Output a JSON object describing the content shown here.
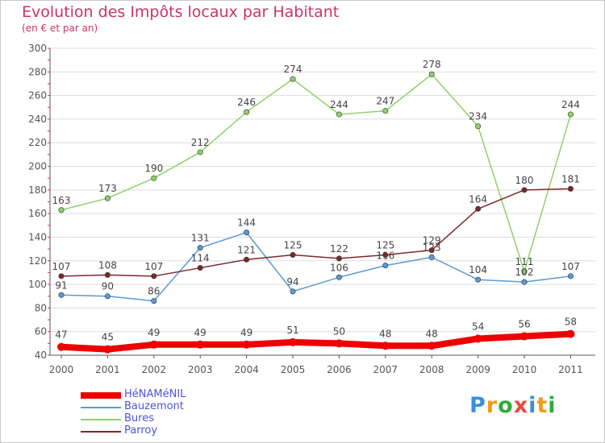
{
  "title": "Evolution des Impôts locaux par Habitant",
  "subtitle": "(en € et par an)",
  "logo": {
    "letters": [
      "P",
      "r",
      "o",
      "x",
      "i",
      "t",
      "i"
    ],
    "colors": [
      "#3a8fd8",
      "#f39c12",
      "#2eab3a",
      "#e74c3c",
      "#3a8fd8",
      "#f39c12",
      "#2eab3a"
    ]
  },
  "colors": {
    "title": "#cc3366",
    "legend_text": "#4a55d8",
    "axis": "#555555",
    "grid": "#dddddd"
  },
  "chart_data": {
    "type": "line",
    "title": "Evolution des Impôts locaux par Habitant",
    "subtitle": "(en € et par an)",
    "categories": [
      "2000",
      "2001",
      "2002",
      "2003",
      "2004",
      "2005",
      "2006",
      "2007",
      "2008",
      "2009",
      "2010",
      "2011"
    ],
    "ylim": [
      40,
      300
    ],
    "yticks": [
      40,
      60,
      80,
      100,
      120,
      140,
      160,
      180,
      200,
      220,
      240,
      260,
      280,
      300
    ],
    "grid": true,
    "legend_position": "bottom-left",
    "series": [
      {
        "name": "HéNAMéNIL",
        "color": "#ee0000",
        "values": [
          47,
          45,
          49,
          49,
          49,
          51,
          50,
          48,
          48,
          54,
          56,
          58
        ],
        "labels": [
          "47",
          "45",
          "49",
          "49",
          "49",
          "51",
          "50",
          "48",
          "48",
          "54",
          "56",
          "58"
        ]
      },
      {
        "name": "Bauzemont",
        "color": "#5b9bd5",
        "values": [
          91,
          90,
          86,
          131,
          144,
          94,
          106,
          116,
          123,
          104,
          102,
          107
        ],
        "labels": [
          "91",
          "90",
          "86",
          "131",
          "144",
          "94",
          "106",
          "116",
          "123",
          "104",
          "102",
          "107"
        ]
      },
      {
        "name": "Bures",
        "color": "#8fd16a",
        "values": [
          163,
          173,
          190,
          212,
          246,
          274,
          244,
          247,
          278,
          234,
          111,
          244
        ],
        "labels": [
          "163",
          "173",
          "190",
          "212",
          "246",
          "274",
          "244",
          "247",
          "278",
          "234",
          "111",
          "244"
        ]
      },
      {
        "name": "Parroy",
        "color": "#7a2a2a",
        "values": [
          107,
          108,
          107,
          114,
          121,
          125,
          122,
          125,
          129,
          164,
          180,
          181
        ],
        "labels": [
          "107",
          "108",
          "107",
          "114",
          "121",
          "125",
          "122",
          "125",
          "129",
          "164",
          "180",
          "181"
        ]
      }
    ]
  }
}
